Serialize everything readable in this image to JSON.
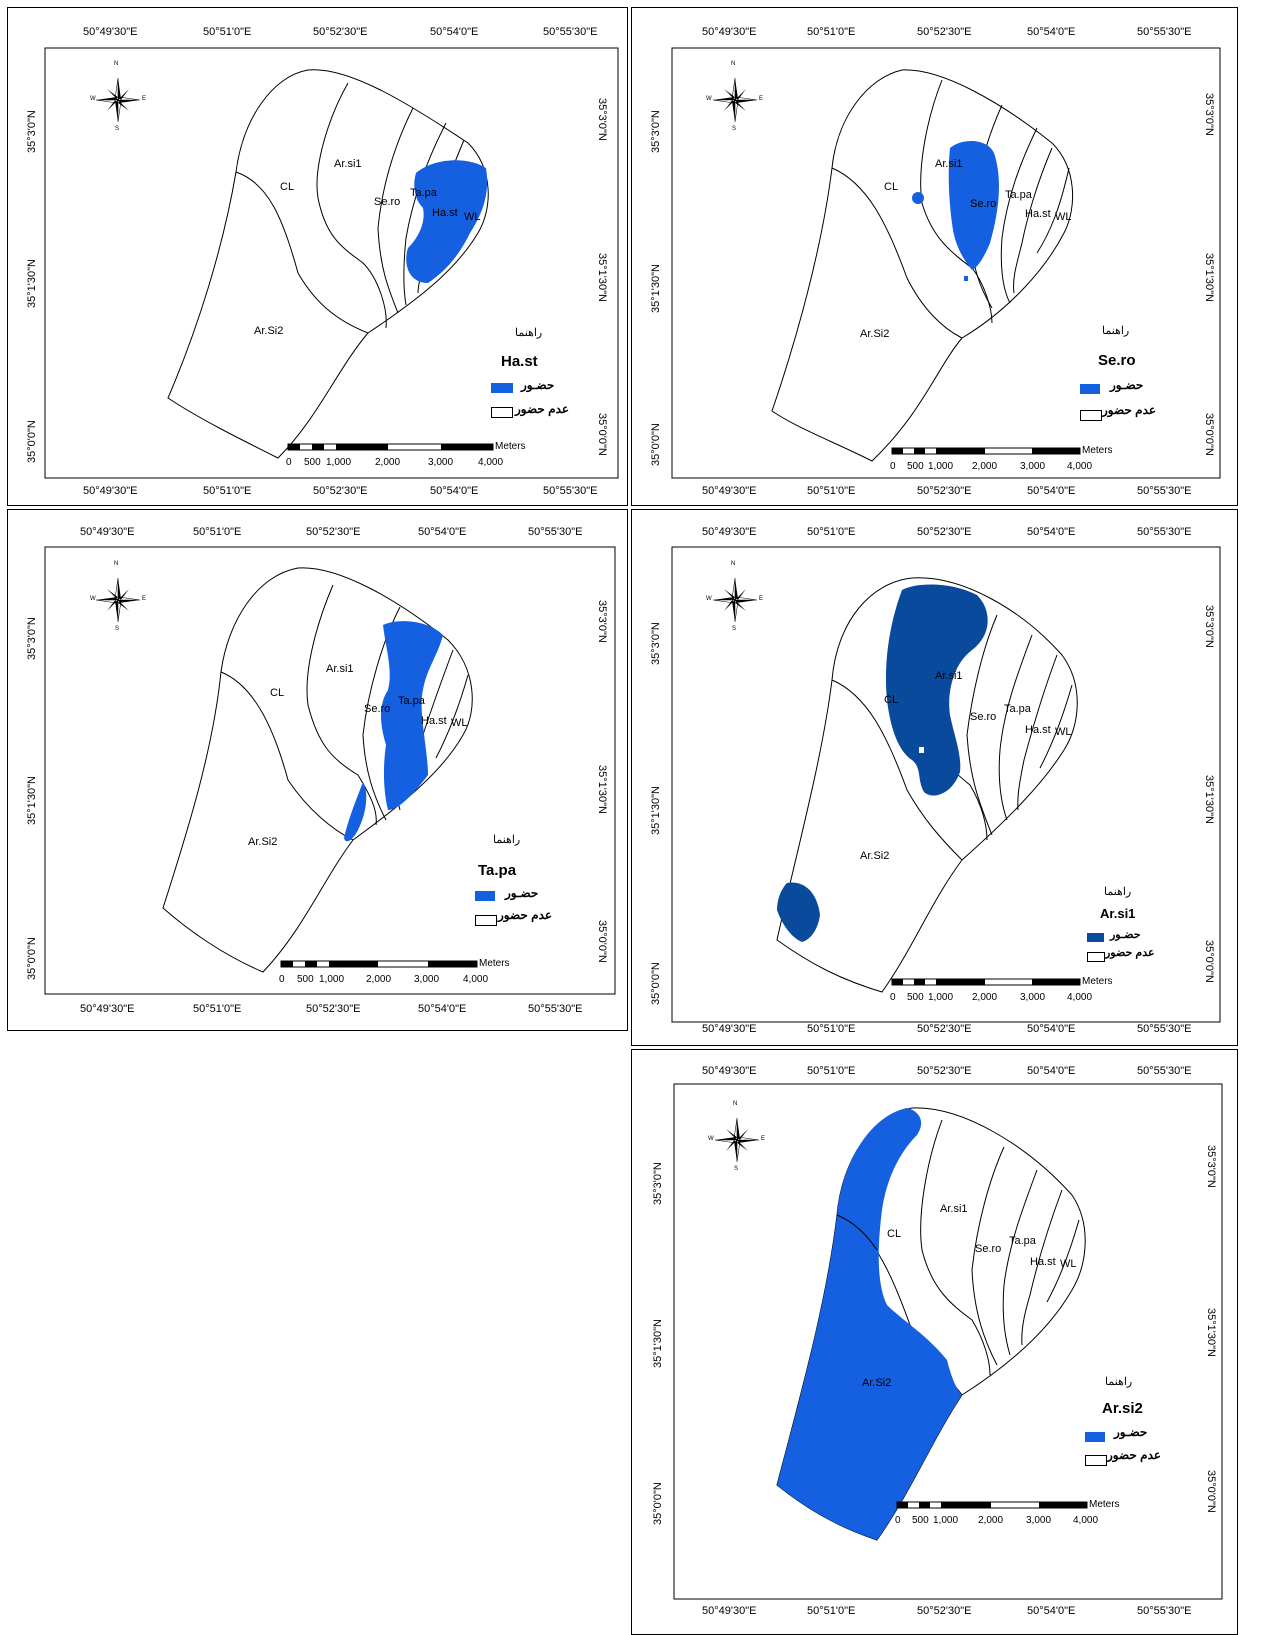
{
  "coords": {
    "x": [
      "50°49'30\"E",
      "50°51'0\"E",
      "50°52'30\"E",
      "50°54'0\"E",
      "50°55'30\"E"
    ],
    "y": [
      "35°3'0\"N",
      "35°1'30\"N",
      "35°0'0\"N"
    ]
  },
  "compass": {
    "n": "N",
    "s": "S",
    "e": "E",
    "w": "W"
  },
  "zones": [
    "CL",
    "Ar.si1",
    "Se.ro",
    "Ta.pa",
    "Ha.st",
    "WL",
    "Ar.Si2"
  ],
  "legend": {
    "title": "راهنما",
    "present": "حضـور",
    "absent": "عدم حضور"
  },
  "scale": {
    "labels": [
      "0",
      "500",
      "1,000",
      "2,000",
      "3,000",
      "4,000"
    ],
    "unit": "Meters"
  },
  "panels": [
    {
      "species": "Ha.st",
      "color": "#1560e0"
    },
    {
      "species": "Se.ro",
      "color": "#1560e0"
    },
    {
      "species": "Ta.pa",
      "color": "#1560e0"
    },
    {
      "species": "Ar.si1",
      "color": "#0a4a9c"
    },
    {
      "species": "Ar.si2",
      "color": "#1560e0"
    }
  ]
}
